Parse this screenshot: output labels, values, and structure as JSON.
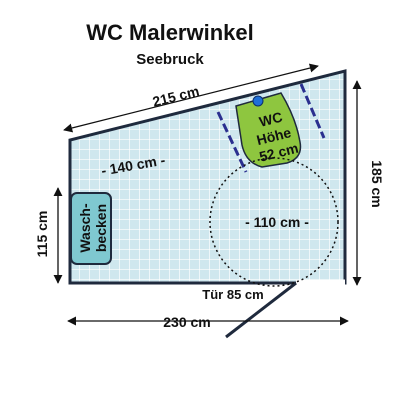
{
  "title": "WC Malerwinkel",
  "subtitle": "Seebruck",
  "dimensions": {
    "top_wall": "215 cm",
    "inner_width": "- 140 cm -",
    "right_wall": "185 cm",
    "left_wall": "115 cm",
    "bottom_wall": "230 cm",
    "door": "Tür 85 cm",
    "turning_circle": "- 110 cm -"
  },
  "wc": {
    "line1": "WC",
    "line2": "Höhe",
    "line3": "52 cm"
  },
  "sink": {
    "line1": "Wasch-",
    "line2": "becken"
  },
  "colors": {
    "floor": "#cfe7ee",
    "grid": "#ffffff",
    "wall": "#1f2a3d",
    "wc_fill": "#8ec63f",
    "sink_fill": "#7fc8d0",
    "grab_bar": "#2b2f8f"
  }
}
